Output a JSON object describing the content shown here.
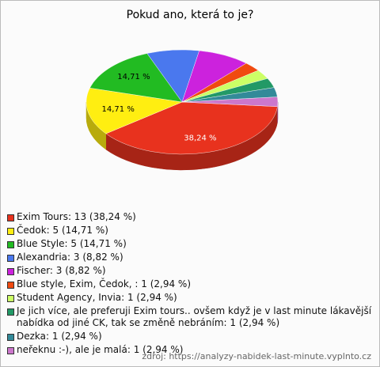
{
  "chart_data": {
    "type": "pie",
    "title": "Pokud ano, která to je?",
    "categories": [
      "Exim Tours: 13 (38,24 %)",
      "Čedok: 5 (14,71 %)",
      "Blue Style: 5 (14,71 %)",
      "Alexandria: 3 (8,82 %)",
      "Fischer: 3 (8,82 %)",
      "Blue style, Exim, Čedok, : 1 (2,94 %)",
      "Student Agency, Invia: 1 (2,94 %)",
      "Je jich více, ale preferuji Exim tours.. ovšem když je v last minute lákavější nabídka od jiné CK, tak se změně nebráním: 1 (2,94 %)",
      "Dezka: 1 (2,94 %)",
      "neřeknu :-), ale je malá: 1 (2,94 %)"
    ],
    "values": [
      38.24,
      14.71,
      14.71,
      8.82,
      8.82,
      2.94,
      2.94,
      2.94,
      2.94,
      2.94
    ],
    "value_labels": [
      "38,24 %",
      "14,71 %",
      "14,71 %",
      null,
      null,
      null,
      null,
      null,
      null,
      null
    ],
    "colors": [
      "#e8321e",
      "#ffee11",
      "#22bb22",
      "#4a78ee",
      "#cc22dd",
      "#f04a10",
      "#ccff66",
      "#229966",
      "#338a99",
      "#cc77cc"
    ],
    "source": "zdroj: https://analyzy-nabidek-last-minute.vyplnto.cz"
  }
}
